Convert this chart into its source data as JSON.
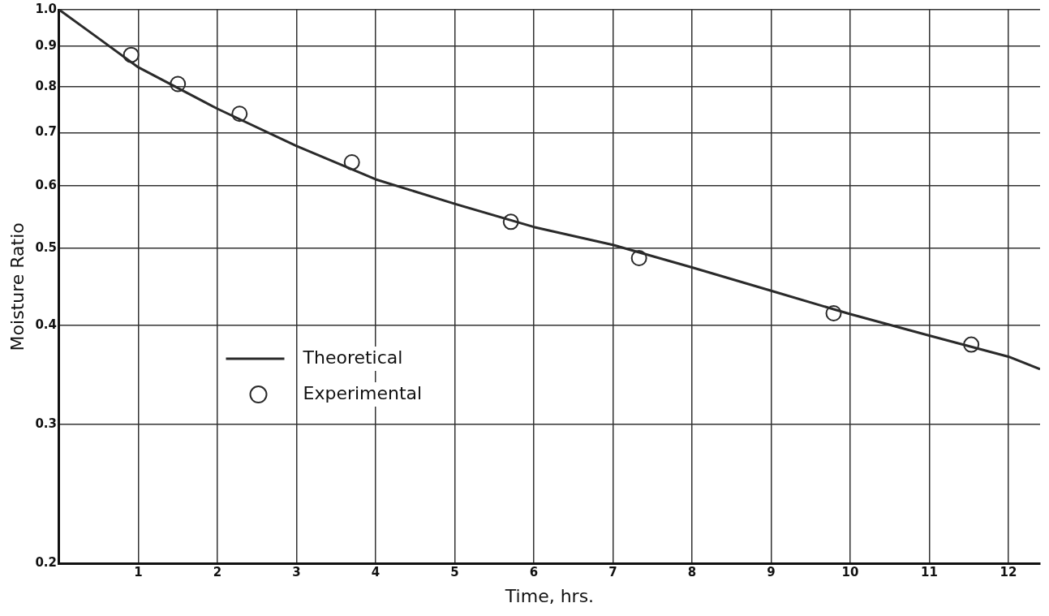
{
  "chart_data": {
    "type": "line",
    "xlabel": "Time, hrs.",
    "ylabel": "Moisture Ratio",
    "series": [
      {
        "name": "Theoretical",
        "color": "#2a2a2a",
        "marker": "none",
        "line_style": "solid",
        "x": [
          0,
          0.5,
          1,
          2,
          3,
          4,
          5,
          6,
          7,
          8,
          9,
          10,
          11,
          12,
          12.4
        ],
        "values": [
          1.0,
          0.92,
          0.846,
          0.75,
          0.673,
          0.611,
          0.569,
          0.532,
          0.505,
          0.473,
          0.442,
          0.413,
          0.388,
          0.365,
          0.352
        ]
      },
      {
        "name": "Experimental",
        "type": "scatter",
        "color": "#2a2a2a",
        "marker": "circle",
        "x": [
          0.91,
          1.5,
          2.28,
          3.7,
          5.71,
          7.33,
          9.79,
          11.53
        ],
        "values": [
          0.877,
          0.806,
          0.739,
          0.642,
          0.54,
          0.486,
          0.414,
          0.378
        ]
      }
    ],
    "xlim": [
      0,
      12.4
    ],
    "xticks": [
      1,
      2,
      3,
      4,
      5,
      6,
      7,
      8,
      9,
      10,
      11,
      12
    ],
    "ylim": [
      0.2,
      1.0
    ],
    "yticks": [
      0.2,
      0.3,
      0.4,
      0.5,
      0.6,
      0.7,
      0.8,
      0.9,
      {
        "value": 1.0,
        "label": "1.0"
      }
    ],
    "log": "y",
    "grid": true,
    "legend": "left"
  }
}
